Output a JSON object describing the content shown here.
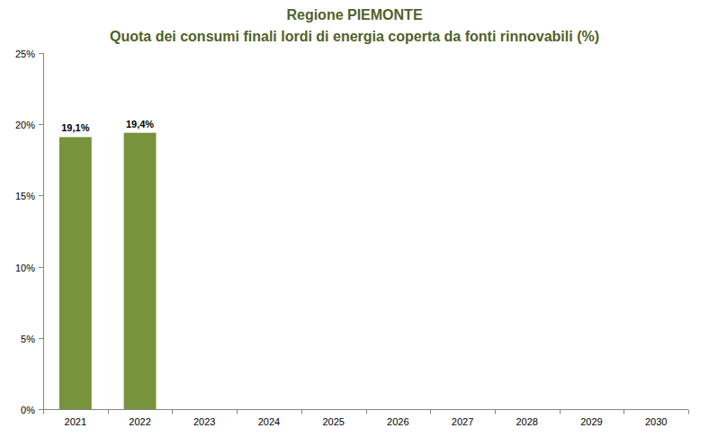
{
  "chart_data": {
    "type": "bar",
    "title": "Regione PIEMONTE",
    "subtitle": "Quota dei consumi finali lordi di energia coperta da fonti rinnovabili (%)",
    "categories": [
      "2021",
      "2022",
      "2023",
      "2024",
      "2025",
      "2026",
      "2027",
      "2028",
      "2029",
      "2030"
    ],
    "values": [
      19.1,
      19.4,
      null,
      null,
      null,
      null,
      null,
      null,
      null,
      null
    ],
    "value_labels": [
      "19,1%",
      "19,4%",
      null,
      null,
      null,
      null,
      null,
      null,
      null,
      null
    ],
    "data_labels": true,
    "color": "#77933c",
    "ylim": [
      0,
      25
    ],
    "yticks": [
      {
        "value": 0,
        "label": "0%"
      },
      {
        "value": 5,
        "label": "5%"
      },
      {
        "value": 10,
        "label": "10%"
      },
      {
        "value": 15,
        "label": "15%"
      },
      {
        "value": 20,
        "label": "20%"
      },
      {
        "value": 25,
        "label": "25%"
      }
    ],
    "grid": false
  }
}
